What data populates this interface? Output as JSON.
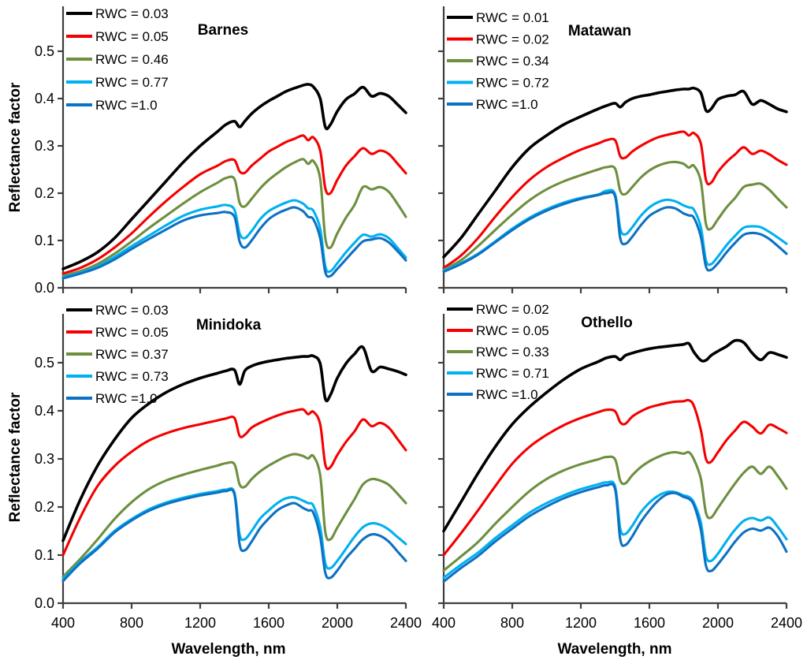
{
  "figure": {
    "ylabel": "Reflectance factor",
    "xlabel": "Wavelength, nm",
    "ytick_labels": [
      "0.0",
      "0.1",
      "0.2",
      "0.3",
      "0.4",
      "0.5"
    ],
    "xtick_labels": [
      "400",
      "800",
      "1200",
      "1600",
      "2000",
      "2400"
    ],
    "colors": {
      "black": "#000000",
      "red": "#f40000",
      "green": "#6d8f3e",
      "cyan": "#00b0f0",
      "blue": "#0d71c2"
    }
  },
  "wavelengths_nm": [
    400,
    500,
    600,
    700,
    800,
    900,
    1000,
    1100,
    1200,
    1300,
    1350,
    1400,
    1430,
    1460,
    1500,
    1550,
    1600,
    1650,
    1700,
    1750,
    1800,
    1830,
    1860,
    1900,
    1930,
    1960,
    2000,
    2050,
    2100,
    2150,
    2200,
    2250,
    2300,
    2350,
    2400
  ],
  "chart_data": [
    {
      "type": "line",
      "title": "Barnes",
      "xlabel": "Wavelength, nm",
      "ylabel": "Reflectance factor",
      "xlim": [
        400,
        2400
      ],
      "ylim": [
        0,
        0.6
      ],
      "xticks": [
        400,
        800,
        1200,
        1600,
        2000,
        2400
      ],
      "yticks": [
        0.0,
        0.1,
        0.2,
        0.3,
        0.4,
        0.5
      ],
      "legend_position": "top-left",
      "x_ref": "wavelengths_nm",
      "series": [
        {
          "name": "RWC = 0.03",
          "rwc": 0.03,
          "color": "#000000",
          "values": [
            0.04,
            0.055,
            0.075,
            0.105,
            0.145,
            0.185,
            0.225,
            0.265,
            0.3,
            0.33,
            0.345,
            0.352,
            0.34,
            0.352,
            0.368,
            0.383,
            0.395,
            0.405,
            0.415,
            0.422,
            0.428,
            0.43,
            0.425,
            0.4,
            0.34,
            0.345,
            0.373,
            0.398,
            0.41,
            0.424,
            0.405,
            0.411,
            0.405,
            0.388,
            0.37
          ]
        },
        {
          "name": "RWC = 0.05",
          "rwc": 0.05,
          "color": "#f40000",
          "values": [
            0.03,
            0.042,
            0.06,
            0.085,
            0.115,
            0.15,
            0.183,
            0.213,
            0.24,
            0.258,
            0.268,
            0.27,
            0.246,
            0.243,
            0.258,
            0.273,
            0.288,
            0.298,
            0.308,
            0.315,
            0.322,
            0.312,
            0.318,
            0.29,
            0.21,
            0.2,
            0.228,
            0.258,
            0.278,
            0.295,
            0.283,
            0.29,
            0.283,
            0.263,
            0.242
          ]
        },
        {
          "name": "RWC = 0.46",
          "rwc": 0.46,
          "color": "#6d8f3e",
          "values": [
            0.025,
            0.035,
            0.05,
            0.072,
            0.098,
            0.126,
            0.152,
            0.178,
            0.202,
            0.222,
            0.232,
            0.23,
            0.18,
            0.172,
            0.188,
            0.21,
            0.228,
            0.242,
            0.255,
            0.265,
            0.272,
            0.262,
            0.268,
            0.23,
            0.105,
            0.085,
            0.115,
            0.148,
            0.175,
            0.213,
            0.208,
            0.213,
            0.203,
            0.178,
            0.15
          ]
        },
        {
          "name": "RWC = 0.77",
          "rwc": 0.77,
          "color": "#00b0f0",
          "values": [
            0.022,
            0.032,
            0.045,
            0.065,
            0.088,
            0.11,
            0.132,
            0.152,
            0.165,
            0.172,
            0.175,
            0.165,
            0.115,
            0.105,
            0.12,
            0.145,
            0.162,
            0.172,
            0.18,
            0.185,
            0.178,
            0.168,
            0.163,
            0.125,
            0.045,
            0.035,
            0.052,
            0.075,
            0.095,
            0.112,
            0.108,
            0.113,
            0.105,
            0.085,
            0.064
          ]
        },
        {
          "name": "RWC =1.0",
          "rwc": 1.0,
          "color": "#0d71c2",
          "values": [
            0.02,
            0.03,
            0.042,
            0.06,
            0.082,
            0.103,
            0.123,
            0.142,
            0.153,
            0.158,
            0.16,
            0.15,
            0.098,
            0.085,
            0.1,
            0.125,
            0.145,
            0.157,
            0.165,
            0.17,
            0.162,
            0.15,
            0.145,
            0.105,
            0.033,
            0.025,
            0.04,
            0.06,
            0.08,
            0.098,
            0.102,
            0.105,
            0.096,
            0.078,
            0.058
          ]
        }
      ]
    },
    {
      "type": "line",
      "title": "Matawan",
      "xlabel": "Wavelength, nm",
      "ylabel": "Reflectance factor",
      "xlim": [
        400,
        2400
      ],
      "ylim": [
        0,
        0.6
      ],
      "xticks": [
        400,
        800,
        1200,
        1600,
        2000,
        2400
      ],
      "yticks": [
        0.0,
        0.1,
        0.2,
        0.3,
        0.4,
        0.5
      ],
      "legend_position": "top-left",
      "x_ref": "wavelengths_nm",
      "series": [
        {
          "name": "RWC = 0.01",
          "rwc": 0.01,
          "color": "#000000",
          "values": [
            0.065,
            0.105,
            0.155,
            0.205,
            0.255,
            0.295,
            0.322,
            0.345,
            0.362,
            0.378,
            0.385,
            0.39,
            0.382,
            0.392,
            0.4,
            0.405,
            0.408,
            0.412,
            0.415,
            0.418,
            0.42,
            0.42,
            0.422,
            0.412,
            0.375,
            0.378,
            0.398,
            0.405,
            0.408,
            0.415,
            0.388,
            0.396,
            0.388,
            0.378,
            0.372
          ]
        },
        {
          "name": "RWC = 0.02",
          "rwc": 0.02,
          "color": "#f40000",
          "values": [
            0.042,
            0.068,
            0.105,
            0.15,
            0.192,
            0.228,
            0.255,
            0.275,
            0.292,
            0.305,
            0.312,
            0.312,
            0.278,
            0.275,
            0.288,
            0.3,
            0.31,
            0.318,
            0.323,
            0.327,
            0.33,
            0.322,
            0.327,
            0.305,
            0.228,
            0.222,
            0.245,
            0.266,
            0.282,
            0.297,
            0.283,
            0.29,
            0.282,
            0.27,
            0.26
          ]
        },
        {
          "name": "RWC = 0.34",
          "rwc": 0.34,
          "color": "#6d8f3e",
          "values": [
            0.038,
            0.058,
            0.088,
            0.122,
            0.155,
            0.185,
            0.208,
            0.225,
            0.238,
            0.25,
            0.255,
            0.252,
            0.205,
            0.198,
            0.213,
            0.233,
            0.248,
            0.258,
            0.264,
            0.266,
            0.262,
            0.254,
            0.258,
            0.225,
            0.135,
            0.125,
            0.145,
            0.17,
            0.19,
            0.213,
            0.218,
            0.22,
            0.207,
            0.188,
            0.17
          ]
        },
        {
          "name": "RWC = 0.72",
          "rwc": 0.72,
          "color": "#00b0f0",
          "values": [
            0.036,
            0.052,
            0.072,
            0.098,
            0.125,
            0.148,
            0.166,
            0.18,
            0.19,
            0.197,
            0.205,
            0.198,
            0.125,
            0.113,
            0.128,
            0.152,
            0.17,
            0.181,
            0.186,
            0.183,
            0.174,
            0.17,
            0.165,
            0.128,
            0.058,
            0.05,
            0.066,
            0.09,
            0.11,
            0.127,
            0.13,
            0.128,
            0.118,
            0.106,
            0.093
          ]
        },
        {
          "name": "RWC =1.0",
          "rwc": 1.0,
          "color": "#0d71c2",
          "values": [
            0.034,
            0.05,
            0.07,
            0.096,
            0.122,
            0.145,
            0.163,
            0.177,
            0.188,
            0.196,
            0.2,
            0.193,
            0.105,
            0.093,
            0.108,
            0.132,
            0.152,
            0.163,
            0.17,
            0.168,
            0.157,
            0.153,
            0.148,
            0.108,
            0.045,
            0.038,
            0.052,
            0.075,
            0.095,
            0.112,
            0.116,
            0.113,
            0.103,
            0.088,
            0.072
          ]
        }
      ]
    },
    {
      "type": "line",
      "title": "Minidoka",
      "xlabel": "Wavelength, nm",
      "ylabel": "Reflectance factor",
      "xlim": [
        400,
        2400
      ],
      "ylim": [
        0,
        0.6
      ],
      "xticks": [
        400,
        800,
        1200,
        1600,
        2000,
        2400
      ],
      "yticks": [
        0.0,
        0.1,
        0.2,
        0.3,
        0.4,
        0.5
      ],
      "legend_position": "top-left",
      "x_ref": "wavelengths_nm",
      "series": [
        {
          "name": "RWC = 0.03",
          "rwc": 0.03,
          "color": "#000000",
          "values": [
            0.13,
            0.215,
            0.285,
            0.34,
            0.385,
            0.415,
            0.438,
            0.455,
            0.468,
            0.478,
            0.483,
            0.485,
            0.455,
            0.483,
            0.493,
            0.499,
            0.503,
            0.506,
            0.509,
            0.511,
            0.513,
            0.513,
            0.514,
            0.498,
            0.425,
            0.433,
            0.468,
            0.498,
            0.518,
            0.532,
            0.483,
            0.491,
            0.487,
            0.482,
            0.475
          ]
        },
        {
          "name": "RWC = 0.05",
          "rwc": 0.05,
          "color": "#f40000",
          "values": [
            0.1,
            0.178,
            0.243,
            0.285,
            0.315,
            0.338,
            0.353,
            0.364,
            0.372,
            0.38,
            0.384,
            0.385,
            0.348,
            0.35,
            0.365,
            0.375,
            0.383,
            0.39,
            0.396,
            0.4,
            0.403,
            0.393,
            0.398,
            0.372,
            0.288,
            0.283,
            0.308,
            0.335,
            0.357,
            0.382,
            0.368,
            0.375,
            0.365,
            0.342,
            0.318
          ]
        },
        {
          "name": "RWC = 0.37",
          "rwc": 0.37,
          "color": "#6d8f3e",
          "values": [
            0.055,
            0.092,
            0.132,
            0.175,
            0.21,
            0.237,
            0.255,
            0.267,
            0.277,
            0.286,
            0.291,
            0.289,
            0.247,
            0.242,
            0.258,
            0.274,
            0.286,
            0.296,
            0.305,
            0.31,
            0.306,
            0.301,
            0.306,
            0.266,
            0.148,
            0.133,
            0.157,
            0.187,
            0.216,
            0.247,
            0.258,
            0.255,
            0.246,
            0.228,
            0.208
          ]
        },
        {
          "name": "RWC = 0.73",
          "rwc": 0.73,
          "color": "#00b0f0",
          "values": [
            0.05,
            0.086,
            0.116,
            0.15,
            0.175,
            0.195,
            0.209,
            0.219,
            0.227,
            0.233,
            0.236,
            0.23,
            0.143,
            0.133,
            0.15,
            0.176,
            0.193,
            0.208,
            0.218,
            0.22,
            0.213,
            0.208,
            0.203,
            0.158,
            0.083,
            0.073,
            0.088,
            0.113,
            0.138,
            0.158,
            0.166,
            0.163,
            0.153,
            0.138,
            0.123
          ]
        },
        {
          "name": "RWC =1.0",
          "rwc": 1.0,
          "color": "#0d71c2",
          "values": [
            0.046,
            0.083,
            0.113,
            0.147,
            0.172,
            0.192,
            0.206,
            0.216,
            0.224,
            0.23,
            0.233,
            0.226,
            0.123,
            0.11,
            0.128,
            0.156,
            0.176,
            0.193,
            0.203,
            0.208,
            0.198,
            0.193,
            0.188,
            0.138,
            0.063,
            0.053,
            0.068,
            0.093,
            0.113,
            0.133,
            0.143,
            0.14,
            0.128,
            0.108,
            0.088
          ]
        }
      ]
    },
    {
      "type": "line",
      "title": "Othello",
      "xlabel": "Wavelength, nm",
      "ylabel": "Reflectance factor",
      "xlim": [
        400,
        2400
      ],
      "ylim": [
        0,
        0.6
      ],
      "xticks": [
        400,
        800,
        1200,
        1600,
        2000,
        2400
      ],
      "yticks": [
        0.0,
        0.1,
        0.2,
        0.3,
        0.4,
        0.5
      ],
      "legend_position": "top-left",
      "x_ref": "wavelengths_nm",
      "series": [
        {
          "name": "RWC = 0.02",
          "rwc": 0.02,
          "color": "#000000",
          "values": [
            0.15,
            0.21,
            0.27,
            0.325,
            0.372,
            0.408,
            0.438,
            0.465,
            0.487,
            0.502,
            0.51,
            0.513,
            0.506,
            0.515,
            0.52,
            0.525,
            0.529,
            0.532,
            0.534,
            0.536,
            0.538,
            0.54,
            0.522,
            0.505,
            0.505,
            0.515,
            0.524,
            0.534,
            0.546,
            0.542,
            0.52,
            0.506,
            0.521,
            0.517,
            0.511
          ]
        },
        {
          "name": "RWC = 0.05",
          "rwc": 0.05,
          "color": "#f40000",
          "values": [
            0.1,
            0.145,
            0.193,
            0.243,
            0.29,
            0.325,
            0.35,
            0.37,
            0.385,
            0.397,
            0.402,
            0.399,
            0.376,
            0.373,
            0.388,
            0.399,
            0.407,
            0.412,
            0.416,
            0.419,
            0.42,
            0.422,
            0.41,
            0.36,
            0.3,
            0.294,
            0.314,
            0.339,
            0.359,
            0.377,
            0.367,
            0.353,
            0.371,
            0.364,
            0.354
          ]
        },
        {
          "name": "RWC = 0.33",
          "rwc": 0.33,
          "color": "#6d8f3e",
          "values": [
            0.068,
            0.097,
            0.127,
            0.165,
            0.2,
            0.233,
            0.258,
            0.276,
            0.289,
            0.299,
            0.304,
            0.299,
            0.255,
            0.249,
            0.266,
            0.283,
            0.295,
            0.304,
            0.311,
            0.314,
            0.311,
            0.314,
            0.299,
            0.259,
            0.188,
            0.178,
            0.198,
            0.224,
            0.249,
            0.271,
            0.284,
            0.269,
            0.284,
            0.264,
            0.238
          ]
        },
        {
          "name": "RWC = 0.71",
          "rwc": 0.71,
          "color": "#00b0f0",
          "values": [
            0.053,
            0.08,
            0.105,
            0.135,
            0.162,
            0.188,
            0.208,
            0.224,
            0.237,
            0.247,
            0.251,
            0.243,
            0.155,
            0.144,
            0.161,
            0.189,
            0.209,
            0.223,
            0.231,
            0.231,
            0.224,
            0.221,
            0.209,
            0.168,
            0.098,
            0.088,
            0.103,
            0.129,
            0.153,
            0.171,
            0.177,
            0.172,
            0.178,
            0.158,
            0.133
          ]
        },
        {
          "name": "RWC =1.0",
          "rwc": 1.0,
          "color": "#0d71c2",
          "values": [
            0.045,
            0.073,
            0.098,
            0.128,
            0.155,
            0.181,
            0.201,
            0.218,
            0.231,
            0.241,
            0.245,
            0.237,
            0.133,
            0.121,
            0.139,
            0.169,
            0.193,
            0.213,
            0.226,
            0.229,
            0.221,
            0.217,
            0.204,
            0.153,
            0.078,
            0.067,
            0.081,
            0.104,
            0.128,
            0.147,
            0.155,
            0.151,
            0.157,
            0.139,
            0.107
          ]
        }
      ]
    }
  ]
}
